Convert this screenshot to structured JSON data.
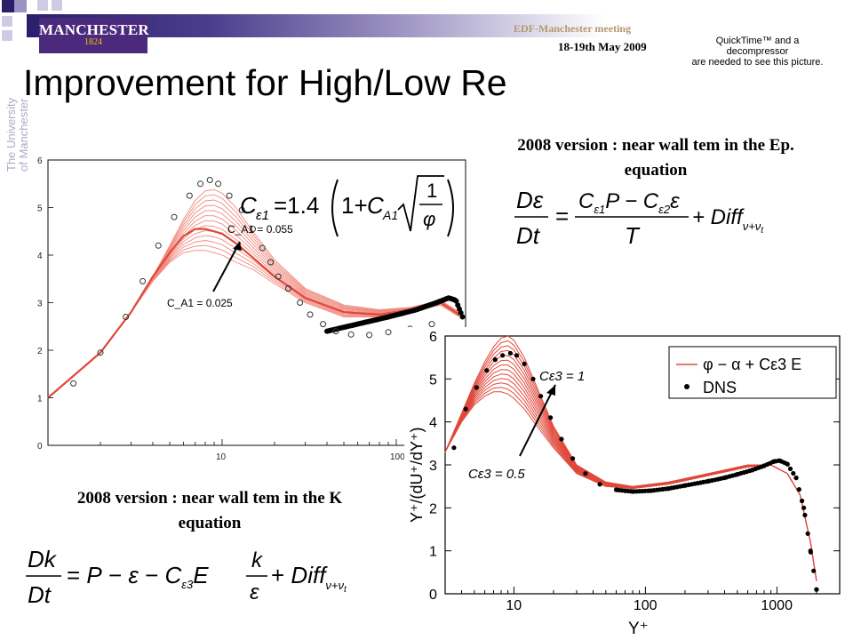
{
  "header": {
    "logo_text": "MANCHESTER",
    "logo_year": "1824",
    "meeting": "EDF-Manchester meeting",
    "date": "18-19th May 2009",
    "quicktime_lines": [
      "QuickTime™ and a",
      "decompressor",
      "are needed to see this picture."
    ],
    "vertical_logo_line1": "The University",
    "vertical_logo_line2": "of Manchester"
  },
  "colors": {
    "brand_purple": "#4b2a7d",
    "curve_red": "#e0483a",
    "curve_black": "#000000"
  },
  "title": "Improvement for High/Low Re",
  "captions": {
    "ep_equation": "2008 version : near wall tem in the Ep. equation",
    "k_equation": "2008 version : near wall tem in the K equation"
  },
  "equations": {
    "c_eps1": "Cε1 = 1.4 ( 1 + C_A1 √(1/φ) )",
    "ep": "Dε/Dt = (Cε1 P − Cε2 ε)/T + Diff_{ν+νt}",
    "k": "Dk/Dt = P − ε − Cε3 E k/ε + Diff_{ν+νt}"
  },
  "chart_data": [
    {
      "type": "line",
      "xscale": "log",
      "xlim": [
        1,
        250
      ],
      "ylim": [
        0,
        6
      ],
      "x_ticks": [
        "10",
        "100"
      ],
      "y_ticks": [
        "0",
        "1",
        "2",
        "3",
        "4",
        "5",
        "6"
      ],
      "annotations": [
        "C_A1 = 0.055",
        "C_A1 = 0.025"
      ],
      "series": [
        {
          "name": "",
          "style": "open-circles",
          "x": [
            1.4,
            2,
            2.8,
            3.5,
            4.3,
            5.3,
            6.5,
            7.5,
            8.5,
            9.5,
            11,
            13,
            15,
            17,
            19,
            21,
            24,
            28,
            32,
            38,
            45,
            55,
            70,
            90,
            120,
            160
          ],
          "y": [
            1.3,
            1.95,
            2.7,
            3.45,
            4.2,
            4.8,
            5.25,
            5.5,
            5.58,
            5.5,
            5.25,
            4.95,
            4.55,
            4.15,
            3.85,
            3.55,
            3.3,
            3.0,
            2.75,
            2.55,
            2.4,
            2.33,
            2.32,
            2.38,
            2.45,
            2.55
          ]
        },
        {
          "name": "",
          "style": "red-band-upper",
          "x": [
            1,
            2,
            3,
            4,
            5,
            6,
            7,
            8,
            9,
            10,
            12,
            15,
            20,
            30,
            50,
            80,
            120,
            180,
            230
          ],
          "y": [
            1.0,
            1.95,
            2.8,
            3.55,
            4.2,
            4.75,
            5.15,
            5.35,
            5.38,
            5.3,
            5.0,
            4.5,
            3.9,
            3.3,
            2.95,
            2.85,
            2.9,
            3.05,
            2.8
          ]
        },
        {
          "name": "",
          "style": "red-band-lower",
          "x": [
            1,
            2,
            3,
            4,
            5,
            6,
            7,
            8,
            9,
            10,
            12,
            15,
            20,
            30,
            50,
            80,
            120,
            180,
            230
          ],
          "y": [
            1.0,
            1.95,
            2.8,
            3.45,
            3.85,
            4.05,
            4.1,
            4.1,
            4.05,
            4.0,
            3.85,
            3.7,
            3.4,
            3.0,
            2.7,
            2.7,
            2.8,
            2.95,
            2.7
          ]
        },
        {
          "name": "",
          "style": "red-mean",
          "x": [
            1,
            2,
            3,
            4,
            5,
            6,
            7,
            8,
            9,
            10,
            12,
            15,
            20,
            30,
            50,
            80,
            120,
            180,
            230
          ],
          "y": [
            1.0,
            1.95,
            2.8,
            3.55,
            4.05,
            4.4,
            4.55,
            4.55,
            4.5,
            4.45,
            4.25,
            3.95,
            3.55,
            3.1,
            2.8,
            2.75,
            2.85,
            3.0,
            2.75
          ]
        },
        {
          "name": "",
          "style": "dense-black",
          "x": [
            40,
            60,
            90,
            130,
            170,
            200,
            220,
            240,
            250
          ],
          "y": [
            2.4,
            2.55,
            2.7,
            2.85,
            3.0,
            3.1,
            3.05,
            2.7,
            2.0
          ]
        }
      ]
    },
    {
      "type": "line",
      "xscale": "log",
      "xlim": [
        3,
        3000
      ],
      "ylim": [
        0,
        6
      ],
      "x_ticks": [
        "10",
        "100",
        "1000"
      ],
      "y_ticks": [
        "0",
        "1",
        "2",
        "3",
        "4",
        "5",
        "6"
      ],
      "xlabel": "Y⁺",
      "ylabel": "Y⁺/(dU⁺/dY⁺)",
      "annotations": [
        "Cε3 = 1",
        "Cε3 = 0.5"
      ],
      "legend_position": "top-right",
      "series": [
        {
          "name": "φ − α + Cε3 E",
          "style": "red-lines",
          "x": [
            3,
            4,
            5,
            6,
            7,
            8,
            9,
            10,
            12,
            15,
            20,
            30,
            50,
            80,
            150,
            300,
            600,
            900,
            1200,
            1500,
            1800,
            2000
          ],
          "y_upper": [
            3.3,
            4.2,
            4.9,
            5.4,
            5.75,
            5.95,
            6.0,
            5.9,
            5.5,
            4.8,
            3.9,
            3.0,
            2.6,
            2.5,
            2.6,
            2.8,
            3.0,
            3.0,
            2.8,
            2.3,
            1.2,
            0.3
          ],
          "y_lower": [
            3.3,
            4.0,
            4.4,
            4.6,
            4.7,
            4.7,
            4.65,
            4.55,
            4.3,
            3.9,
            3.4,
            2.8,
            2.5,
            2.45,
            2.55,
            2.75,
            2.95,
            3.0,
            2.8,
            2.3,
            1.2,
            0.3
          ]
        },
        {
          "name": "DNS",
          "style": "black-dots",
          "x": [
            3.5,
            4.3,
            5.2,
            6.2,
            7.2,
            8.2,
            9.4,
            10.5,
            12,
            14,
            16,
            19,
            23,
            28,
            35,
            45,
            60,
            80,
            110,
            150,
            200,
            300,
            400,
            500,
            650,
            800,
            950,
            1050,
            1200,
            1400,
            1600,
            1800,
            2000
          ],
          "y": [
            3.4,
            4.3,
            4.8,
            5.2,
            5.45,
            5.55,
            5.6,
            5.55,
            5.35,
            5.0,
            4.6,
            4.1,
            3.6,
            3.15,
            2.8,
            2.55,
            2.42,
            2.38,
            2.4,
            2.45,
            2.52,
            2.62,
            2.7,
            2.78,
            2.88,
            2.98,
            3.08,
            3.1,
            3.02,
            2.7,
            2.0,
            1.0,
            0.1
          ]
        }
      ]
    }
  ]
}
